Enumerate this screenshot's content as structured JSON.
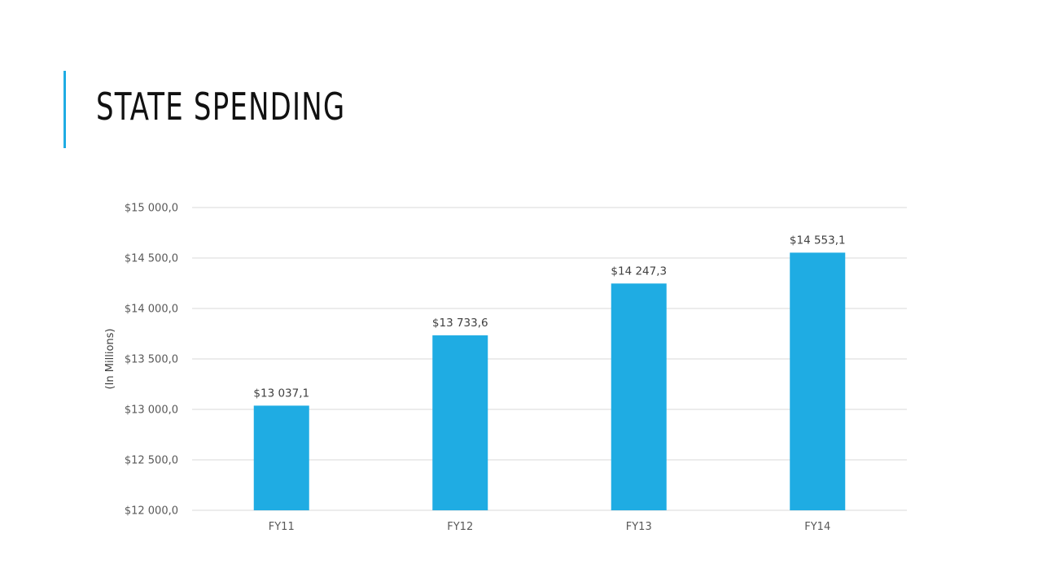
{
  "slide": {
    "title": "STATE SPENDING",
    "accent_color": "#1FACE3"
  },
  "chart_data": {
    "type": "bar",
    "categories": [
      "FY11",
      "FY12",
      "FY13",
      "FY14"
    ],
    "values": [
      13037.1,
      13733.6,
      14247.3,
      14553.1
    ],
    "value_labels": [
      "$13 037,1",
      "$13 733,6",
      "$14 247,3",
      "$14 553,1"
    ],
    "title": "",
    "xlabel": "",
    "ylabel": "(In Millions)",
    "ylim": [
      12000,
      15000
    ],
    "yticks": [
      12000,
      12500,
      13000,
      13500,
      14000,
      14500,
      15000
    ],
    "ytick_labels": [
      "$12 000,0",
      "$12 500,0",
      "$13 000,0",
      "$13 500,0",
      "$14 000,0",
      "$14 500,0",
      "$15 000,0"
    ],
    "grid": true,
    "legend": "none",
    "bar_color": "#1FACE3",
    "gridline_color": "#D9D9D9"
  }
}
